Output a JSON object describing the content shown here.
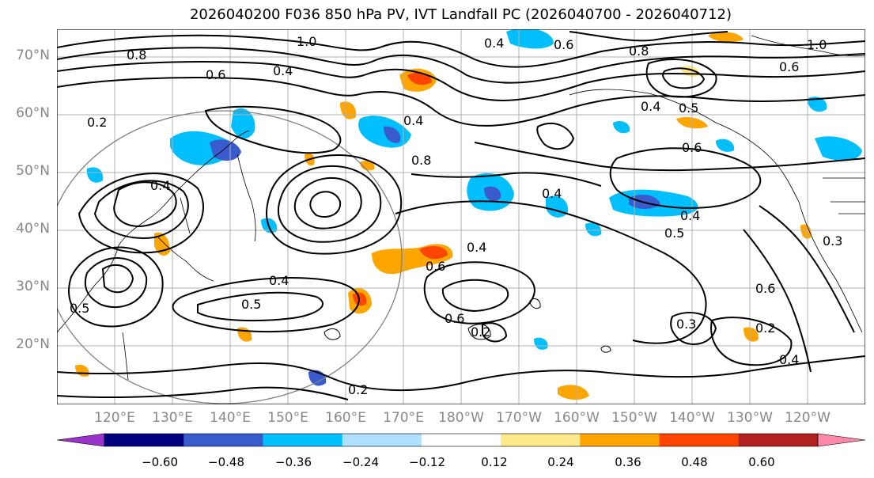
{
  "title": "2026040200 F036 850 hPa PV, IVT Landfall PC (2026040700 - 2026040712)",
  "map": {
    "projection": "cylindrical",
    "lon_range": "110E-115W",
    "lat_range": "10N-75N",
    "grid": true,
    "lat_labels": [
      "70°N",
      "60°N",
      "50°N",
      "40°N",
      "30°N",
      "20°N"
    ],
    "lon_labels": [
      "120°E",
      "130°E",
      "140°E",
      "150°E",
      "160°E",
      "170°E",
      "180°W",
      "170°W",
      "160°W",
      "150°W",
      "140°W",
      "130°W",
      "120°W"
    ],
    "contour_labels": [
      "0.4",
      "0.6",
      "1.0",
      "0.8",
      "0.2",
      "0.5",
      "0.3"
    ],
    "region_circle": true
  },
  "colorbar": {
    "ticks": [
      "−0.60",
      "−0.48",
      "−0.36",
      "−0.24",
      "−0.12",
      "0.12",
      "0.24",
      "0.36",
      "0.48",
      "0.60"
    ],
    "colors": [
      "#9933cc",
      "#000080",
      "#3a5bcd",
      "#00bfff",
      "#b0e0ff",
      "#ffffff",
      "#ffe98a",
      "#ffa500",
      "#ff4500",
      "#b22222",
      "#ff88aa"
    ],
    "extend": "both"
  }
}
